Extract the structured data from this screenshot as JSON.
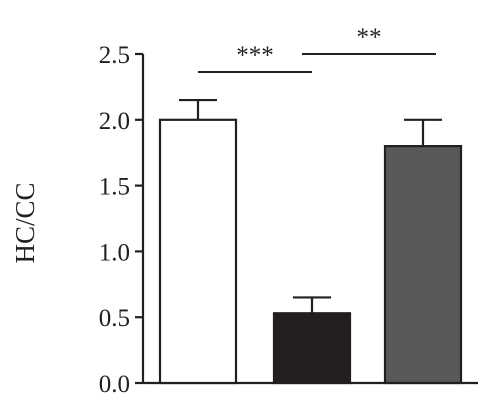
{
  "chart_data": {
    "type": "bar",
    "title": "",
    "xlabel": "",
    "ylabel": "HC/CC",
    "ylim": [
      0,
      2.5
    ],
    "yticks": [
      0.0,
      0.5,
      1.0,
      1.5,
      2.0,
      2.5
    ],
    "ytick_labels": [
      "0.0",
      "0.5",
      "1.0",
      "1.5",
      "2.0",
      "2.5"
    ],
    "categories": [
      "",
      "",
      ""
    ],
    "values": [
      2.0,
      0.53,
      1.8
    ],
    "errors": [
      0.15,
      0.12,
      0.2
    ],
    "colors": [
      "#ffffff",
      "#231f20",
      "#58595b"
    ],
    "significance": [
      {
        "from": 0,
        "to": 1,
        "label": "***"
      },
      {
        "from": 1,
        "to": 2,
        "label": "**"
      }
    ],
    "grid": false,
    "legend": "none"
  }
}
